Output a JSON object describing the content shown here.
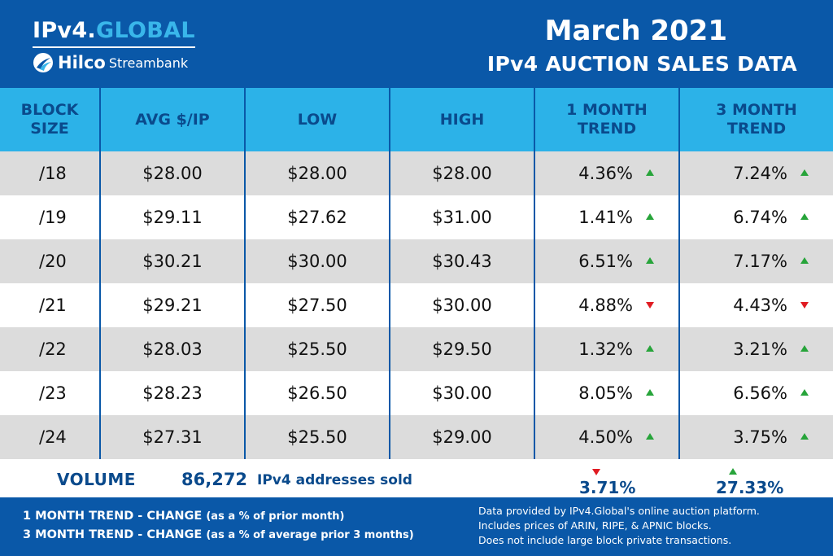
{
  "header": {
    "logo_prefix": "IPv4.",
    "logo_accent": "GLOBAL",
    "sublogo_brand": "Hilco",
    "sublogo_sub": "Streambank",
    "title_month": "March 2021",
    "title_sub": "IPv4 AUCTION SALES DATA"
  },
  "table": {
    "columns": [
      {
        "line1": "BLOCK",
        "line2": "SIZE"
      },
      {
        "line1": "AVG $/IP",
        "line2": ""
      },
      {
        "line1": "LOW",
        "line2": ""
      },
      {
        "line1": "HIGH",
        "line2": ""
      },
      {
        "line1": "1 MONTH",
        "line2": "TREND"
      },
      {
        "line1": "3 MONTH",
        "line2": "TREND"
      }
    ],
    "rows": [
      {
        "block": "/18",
        "avg": "$28.00",
        "low": "$28.00",
        "high": "$28.00",
        "trend1": "4.36%",
        "trend1_dir": "up",
        "trend3": "7.24%",
        "trend3_dir": "up"
      },
      {
        "block": "/19",
        "avg": "$29.11",
        "low": "$27.62",
        "high": "$31.00",
        "trend1": "1.41%",
        "trend1_dir": "up",
        "trend3": "6.74%",
        "trend3_dir": "up"
      },
      {
        "block": "/20",
        "avg": "$30.21",
        "low": "$30.00",
        "high": "$30.43",
        "trend1": "6.51%",
        "trend1_dir": "up",
        "trend3": "7.17%",
        "trend3_dir": "up"
      },
      {
        "block": "/21",
        "avg": "$29.21",
        "low": "$27.50",
        "high": "$30.00",
        "trend1": "4.88%",
        "trend1_dir": "down",
        "trend3": "4.43%",
        "trend3_dir": "down"
      },
      {
        "block": "/22",
        "avg": "$28.03",
        "low": "$25.50",
        "high": "$29.50",
        "trend1": "1.32%",
        "trend1_dir": "up",
        "trend3": "3.21%",
        "trend3_dir": "up"
      },
      {
        "block": "/23",
        "avg": "$28.23",
        "low": "$26.50",
        "high": "$30.00",
        "trend1": "8.05%",
        "trend1_dir": "up",
        "trend3": "6.56%",
        "trend3_dir": "up"
      },
      {
        "block": "/24",
        "avg": "$27.31",
        "low": "$25.50",
        "high": "$29.00",
        "trend1": "4.50%",
        "trend1_dir": "up",
        "trend3": "3.75%",
        "trend3_dir": "up"
      }
    ]
  },
  "volume": {
    "label": "VOLUME",
    "count": "86,272",
    "count_text": "IPv4 addresses sold",
    "trend1": "3.71%",
    "trend1_dir": "down",
    "trend3": "27.33%",
    "trend3_dir": "up"
  },
  "footer": {
    "legend1_main": "1 MONTH TREND - CHANGE",
    "legend1_paren": "(as a % of prior month)",
    "legend2_main": "3 MONTH TREND - CHANGE",
    "legend2_paren": "(as a % of average prior 3 months)",
    "note1": "Data provided by IPv4.Global's online auction platform.",
    "note2": "Includes prices of ARIN, RIPE, & APNIC blocks.",
    "note3": "Does not include large block private transactions."
  },
  "colors": {
    "brand_blue": "#0a58a8",
    "header_cyan": "#2cb2e8",
    "row_gray": "#dcdcdc",
    "trend_up": "#27a43a",
    "trend_down": "#e01b22"
  },
  "icons": {
    "logo": "hilco-swoosh-icon",
    "up": "trend-up-arrow-icon",
    "down": "trend-down-arrow-icon"
  }
}
